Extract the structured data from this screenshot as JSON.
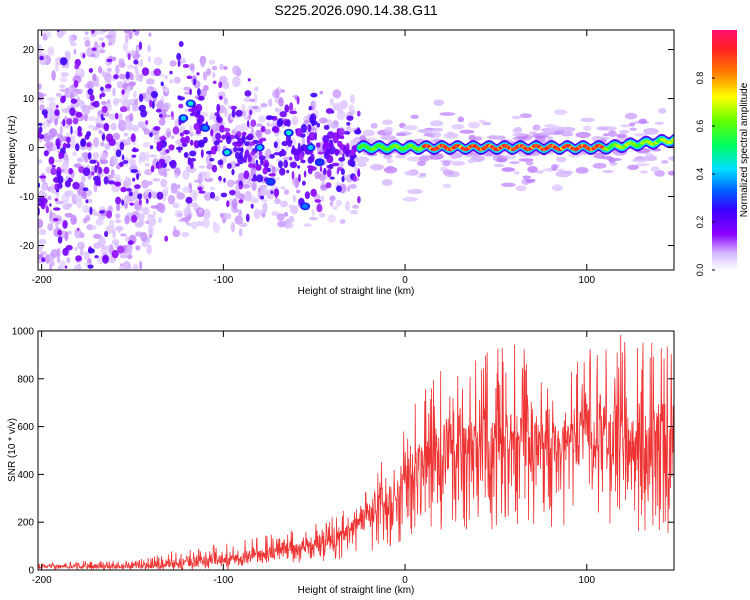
{
  "title": "S225.2026.090.14.38.G11",
  "chart_data": [
    {
      "type": "heatmap",
      "xlabel": "Height of straight line (km)",
      "ylabel": "Frequency (Hz)",
      "xlim": [
        -202,
        148
      ],
      "ylim": [
        -25,
        24
      ],
      "xticks": [
        -200,
        -100,
        0,
        100
      ],
      "yticks": [
        20,
        10,
        0,
        -10,
        -20
      ],
      "description_of_pattern": "scattered low-amplitude blobs for height < -25 km; strong narrow band at 0 Hz for height > -25 km",
      "band": {
        "frequency_hz": 0,
        "x_start": -25,
        "x_end": 148,
        "peak_amplitude": 0.9
      },
      "strong_points": [
        {
          "x": -118,
          "y": 9,
          "amplitude": 0.45
        },
        {
          "x": -122,
          "y": 6,
          "amplitude": 0.4
        },
        {
          "x": -110,
          "y": 4,
          "amplitude": 0.35
        },
        {
          "x": -98,
          "y": -1,
          "amplitude": 0.45
        },
        {
          "x": -80,
          "y": 0,
          "amplitude": 0.4
        },
        {
          "x": -74,
          "y": -7,
          "amplitude": 0.3
        },
        {
          "x": -64,
          "y": 3,
          "amplitude": 0.45
        },
        {
          "x": -52,
          "y": 0,
          "amplitude": 0.4
        },
        {
          "x": -55,
          "y": -12,
          "amplitude": 0.35
        },
        {
          "x": -47,
          "y": -3,
          "amplitude": 0.3
        }
      ],
      "colorbar": {
        "label": "Normalized spectral amplitude",
        "range": [
          0,
          1
        ],
        "ticks": [
          "0.0",
          "0.2",
          "0.4",
          "0.6",
          "0.8"
        ],
        "tick_values": [
          0.0,
          0.2,
          0.4,
          0.6,
          0.8
        ]
      }
    },
    {
      "type": "line",
      "xlabel": "Height of straight line (km)",
      "ylabel": "SNR (10 * v/v)",
      "xlim": [
        -202,
        148
      ],
      "ylim": [
        0,
        1000
      ],
      "xticks": [
        -200,
        -100,
        0,
        100
      ],
      "yticks": [
        0,
        200,
        400,
        600,
        800,
        1000
      ],
      "series_color": "#ee3333",
      "envelope": {
        "x": [
          -202,
          -150,
          -130,
          -100,
          -80,
          -60,
          -40,
          -25,
          -15,
          -5,
          5,
          20,
          40,
          60,
          80,
          100,
          120,
          140,
          148
        ],
        "mean": [
          15,
          15,
          25,
          45,
          70,
          90,
          130,
          200,
          270,
          330,
          440,
          480,
          540,
          560,
          530,
          540,
          560,
          520,
          500
        ],
        "peak": [
          35,
          40,
          80,
          110,
          140,
          170,
          230,
          280,
          450,
          520,
          690,
          850,
          890,
          1000,
          780,
          920,
          1000,
          950,
          960
        ]
      },
      "seed": 12345
    }
  ]
}
